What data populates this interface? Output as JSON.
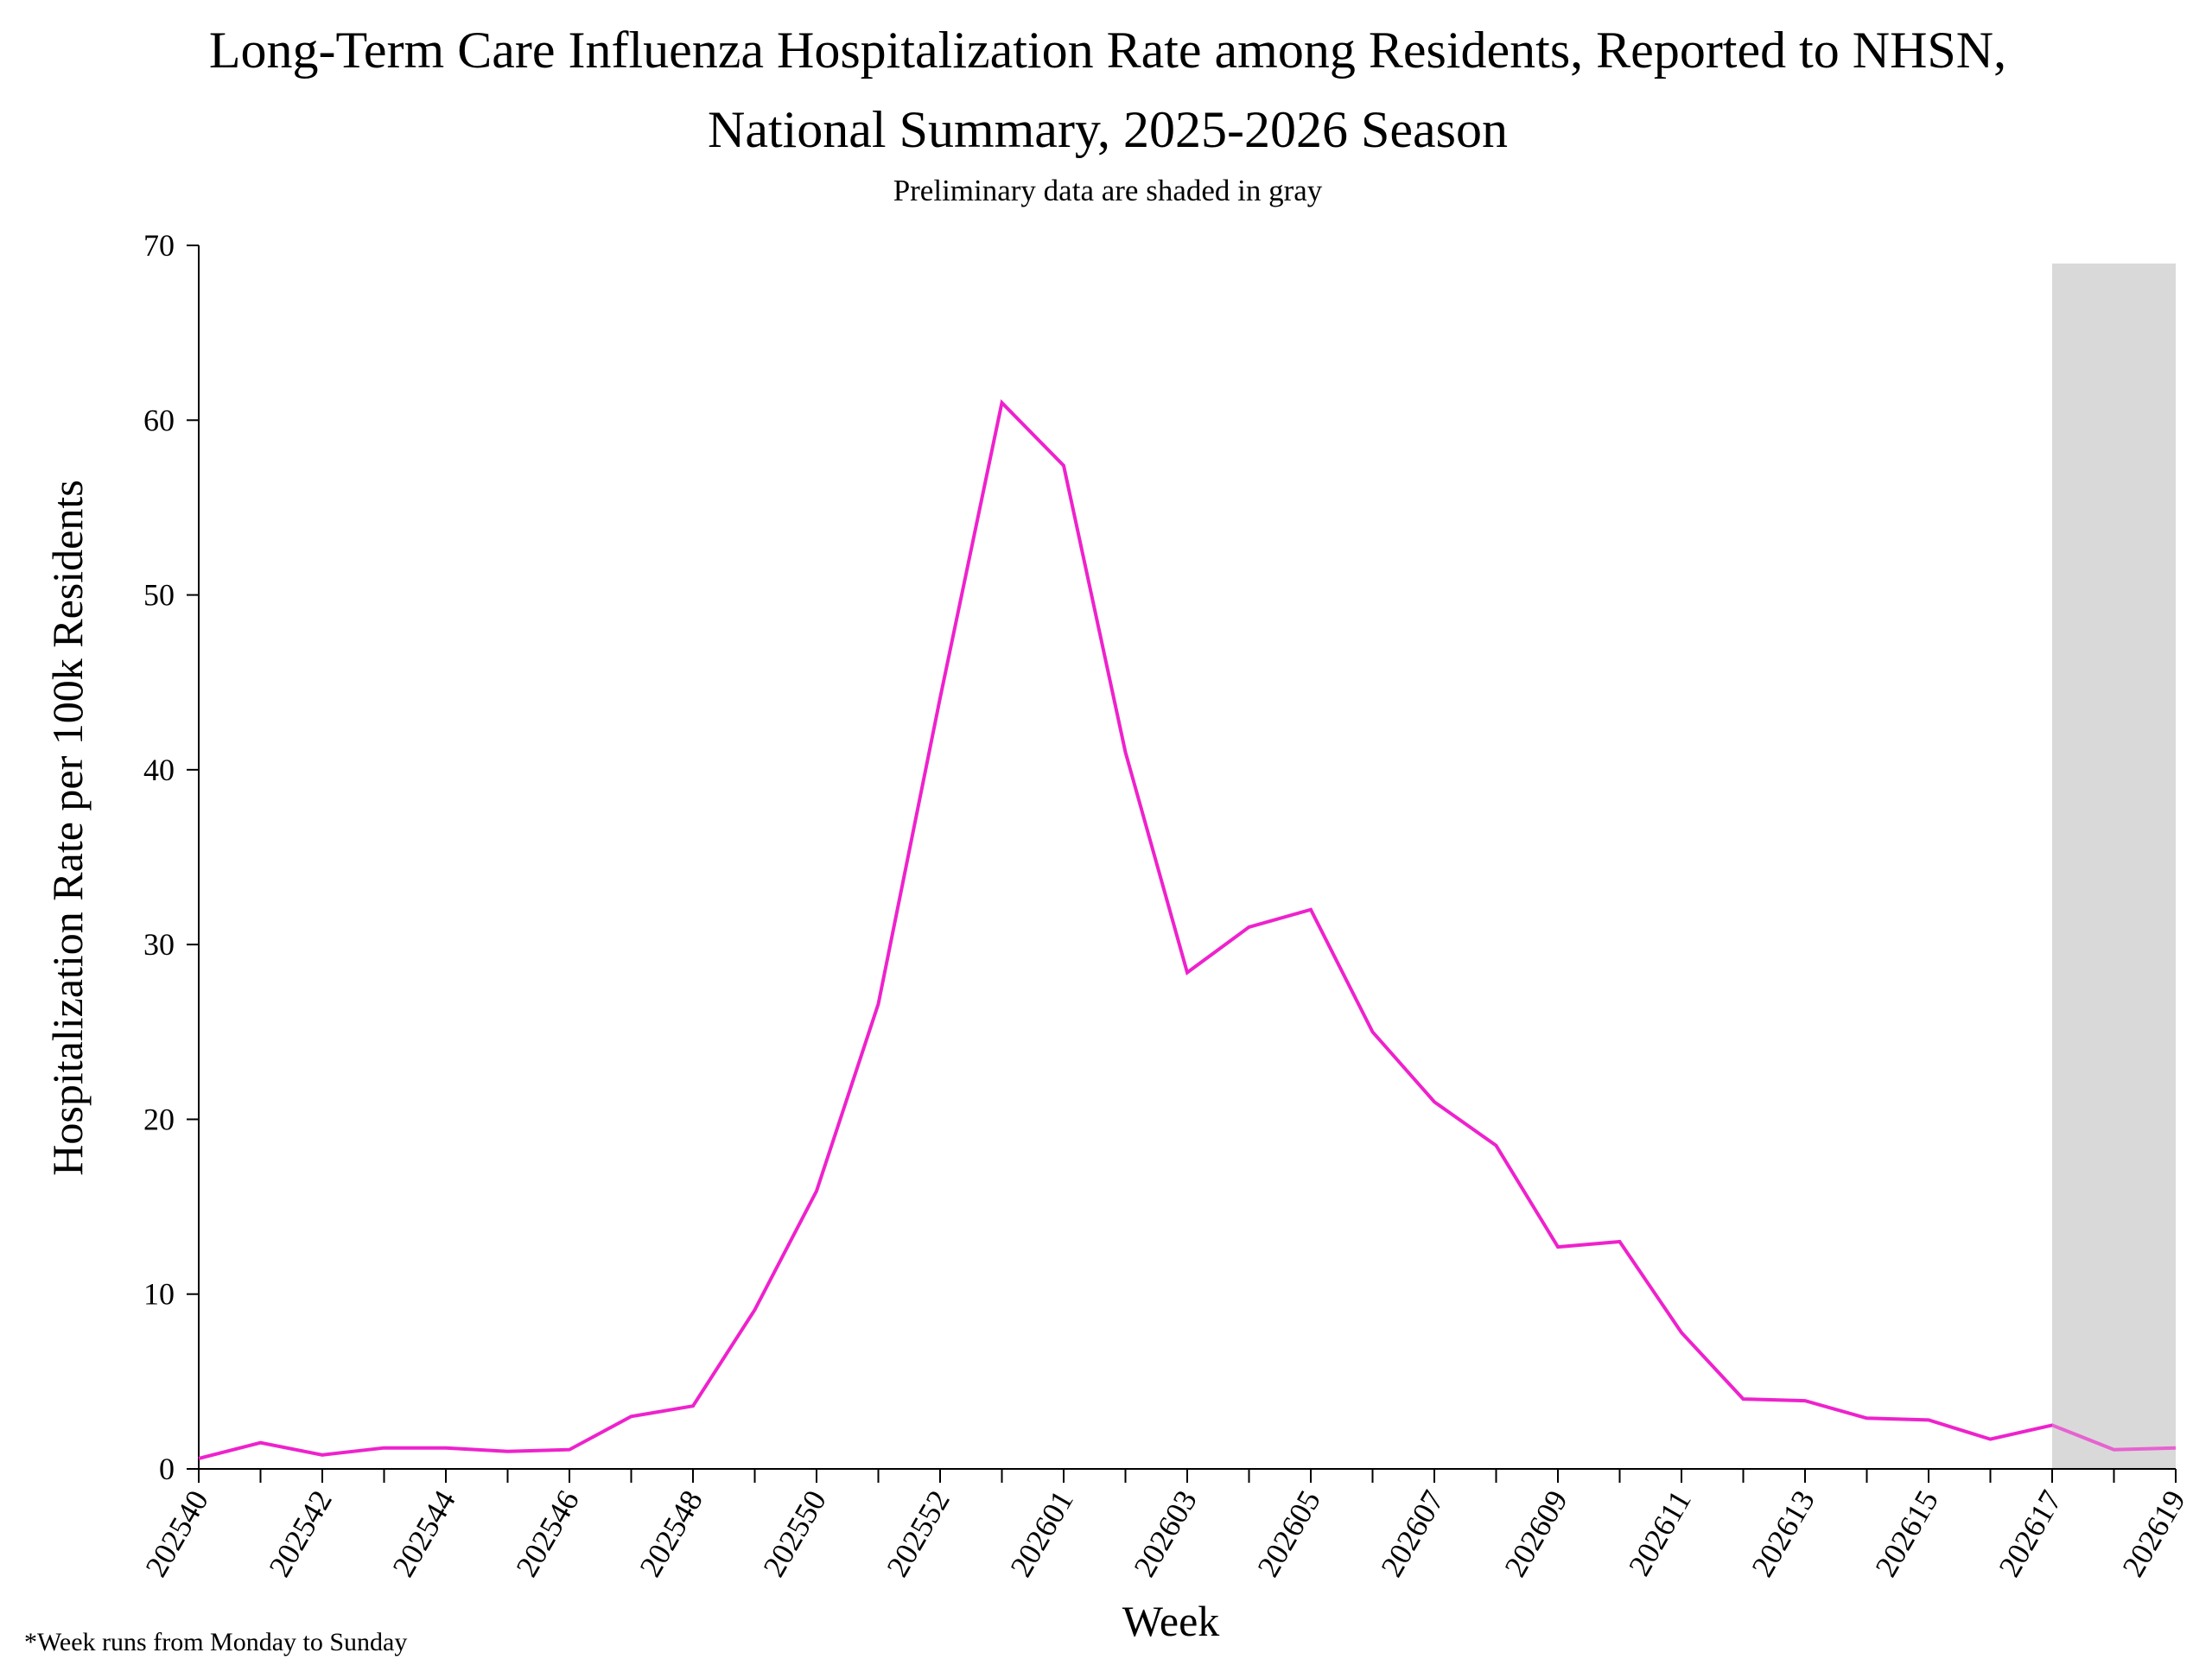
{
  "chart_data": {
    "type": "line",
    "title_lines": [
      "Long-Term Care Influenza Hospitalization Rate among Residents, Reported to NHSN,",
      "National Summary, 2025-2026 Season"
    ],
    "subtitle": "Preliminary data are shaded in gray",
    "xlabel": "Week",
    "ylabel": "Hospitalization Rate per 100k Residents",
    "footnote": "*Week runs from Monday to Sunday",
    "ylim": [
      0,
      70
    ],
    "y_ticks": [
      "0",
      "10",
      "20",
      "30",
      "40",
      "50",
      "60",
      "70"
    ],
    "x": [
      "202540",
      "202541",
      "202542",
      "202543",
      "202544",
      "202545",
      "202546",
      "202547",
      "202548",
      "202549",
      "202550",
      "202551",
      "202552",
      "202553",
      "202601",
      "202602",
      "202603",
      "202604",
      "202605",
      "202606",
      "202607",
      "202608",
      "202609",
      "202610",
      "202611",
      "202612",
      "202613",
      "202614",
      "202615",
      "202616",
      "202617",
      "202618",
      "202619"
    ],
    "x_tick_labels": [
      "202540",
      "202542",
      "202544",
      "202546",
      "202548",
      "202550",
      "202552",
      "202601",
      "202603",
      "202605",
      "202607",
      "202609",
      "202611",
      "202613",
      "202615",
      "202617",
      "202619"
    ],
    "series": [
      {
        "values": [
          0.6,
          1.5,
          0.8,
          1.2,
          1.2,
          1.0,
          1.1,
          3.0,
          3.6,
          9.1,
          15.9,
          26.6,
          44.1,
          61.0,
          57.4,
          41.0,
          28.4,
          31.0,
          32.0,
          25.0,
          21.0,
          18.5,
          12.7,
          13.0,
          7.8,
          4.0,
          3.9,
          2.9,
          2.8,
          1.7,
          2.5,
          1.1,
          1.2
        ],
        "color": "#ee22cc"
      }
    ],
    "preliminary_from": "202617",
    "preliminary_color": "#d9d9d9",
    "grid": false,
    "legend": "none"
  }
}
